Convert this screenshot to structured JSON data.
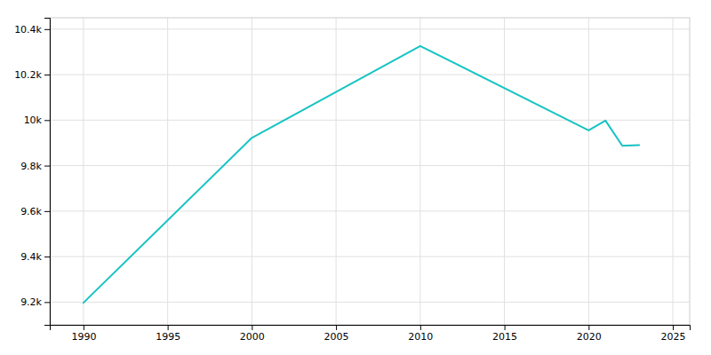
{
  "chart_data": {
    "type": "line",
    "x": [
      1990,
      2000,
      2010,
      2020,
      2021,
      2022,
      2023
    ],
    "values": [
      9197,
      9922,
      10326,
      9955,
      9998,
      9887,
      9890
    ],
    "color": "#17C3C3",
    "xlim": [
      1988,
      2026
    ],
    "ylim": [
      9100,
      10450
    ],
    "xticks": [
      1990,
      1995,
      2000,
      2005,
      2010,
      2015,
      2020,
      2025
    ],
    "yticks": [
      {
        "value": 9200,
        "label": "9.2k"
      },
      {
        "value": 9400,
        "label": "9.4k"
      },
      {
        "value": 9600,
        "label": "9.6k"
      },
      {
        "value": 9800,
        "label": "9.8k"
      },
      {
        "value": 10000,
        "label": "10k"
      },
      {
        "value": 10200,
        "label": "10.2k"
      },
      {
        "value": 10400,
        "label": "10.4k"
      }
    ],
    "grid": true
  }
}
